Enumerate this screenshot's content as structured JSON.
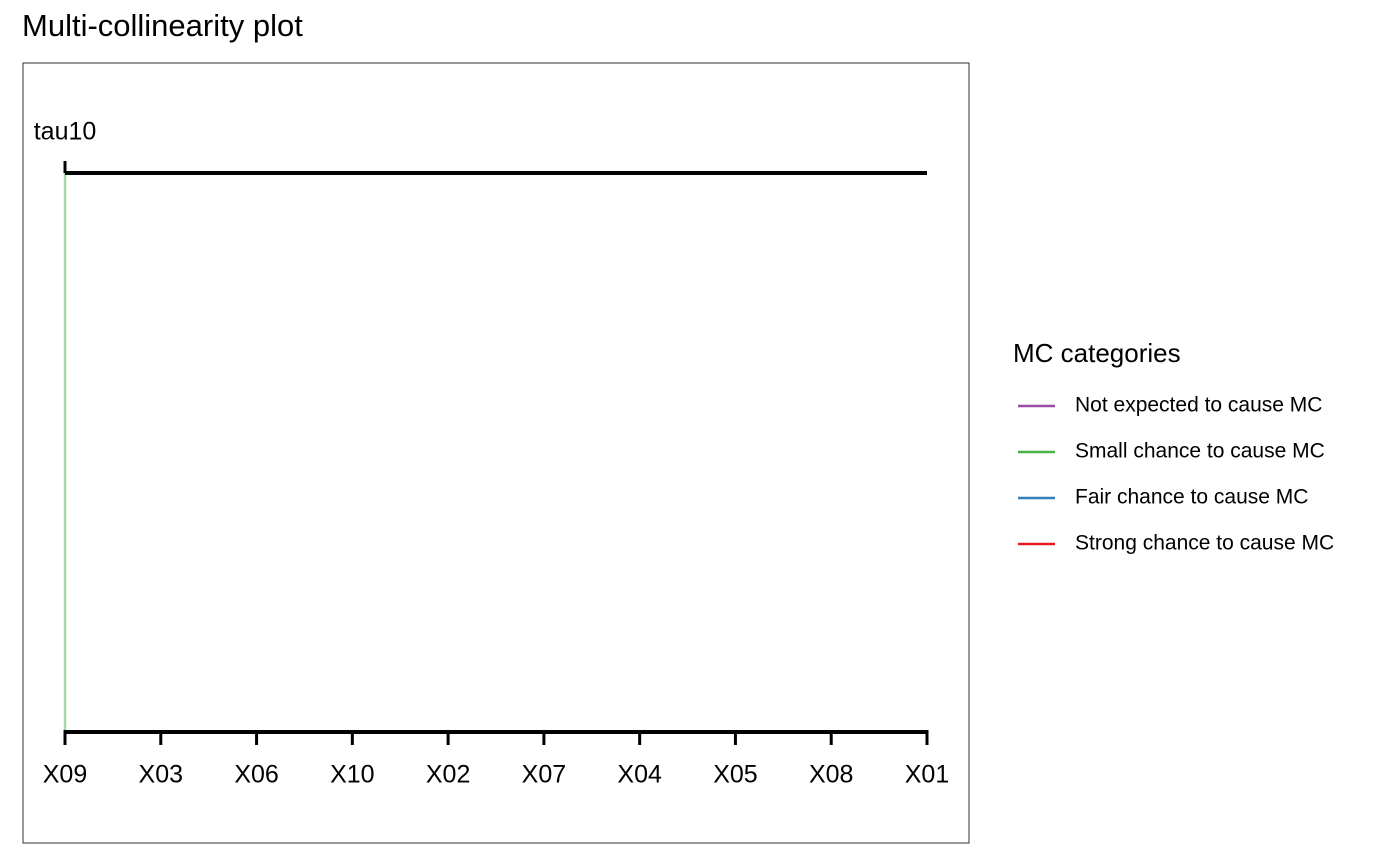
{
  "chart_data": {
    "type": "parallel",
    "title": "Multi-collinearity plot",
    "axis_label": "tau10",
    "categories": [
      "X09",
      "X03",
      "X06",
      "X10",
      "X02",
      "X07",
      "X04",
      "X05",
      "X08",
      "X01"
    ],
    "legend_title": "MC categories",
    "series": [
      {
        "name": "Not expected to cause MC",
        "color": "#984ea3",
        "members": []
      },
      {
        "name": "Small chance to cause MC",
        "color": "#4daf4a",
        "members": [
          "X09"
        ]
      },
      {
        "name": "Fair chance to cause MC",
        "color": "#377eb8",
        "members": []
      },
      {
        "name": "Strong chance to cause MC",
        "color": "#e41a1c",
        "members": []
      }
    ]
  }
}
